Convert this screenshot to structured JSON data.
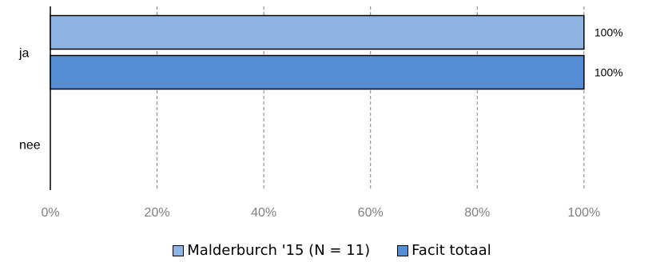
{
  "chart_data": {
    "type": "bar",
    "orientation": "horizontal",
    "categories": [
      "ja",
      "nee"
    ],
    "series": [
      {
        "name": "Malderburch '15 (N = 11)",
        "values": [
          100,
          0
        ],
        "labels": [
          "100%",
          ""
        ],
        "color": "#8EB4E3"
      },
      {
        "name": "Facit totaal",
        "values": [
          100,
          0
        ],
        "labels": [
          "100%",
          ""
        ],
        "color": "#558ED5"
      }
    ],
    "x_ticks": [
      "0%",
      "20%",
      "40%",
      "60%",
      "80%",
      "100%"
    ],
    "xlim": [
      0,
      115
    ],
    "grid": "vertical-dashed",
    "legend_position": "bottom"
  }
}
